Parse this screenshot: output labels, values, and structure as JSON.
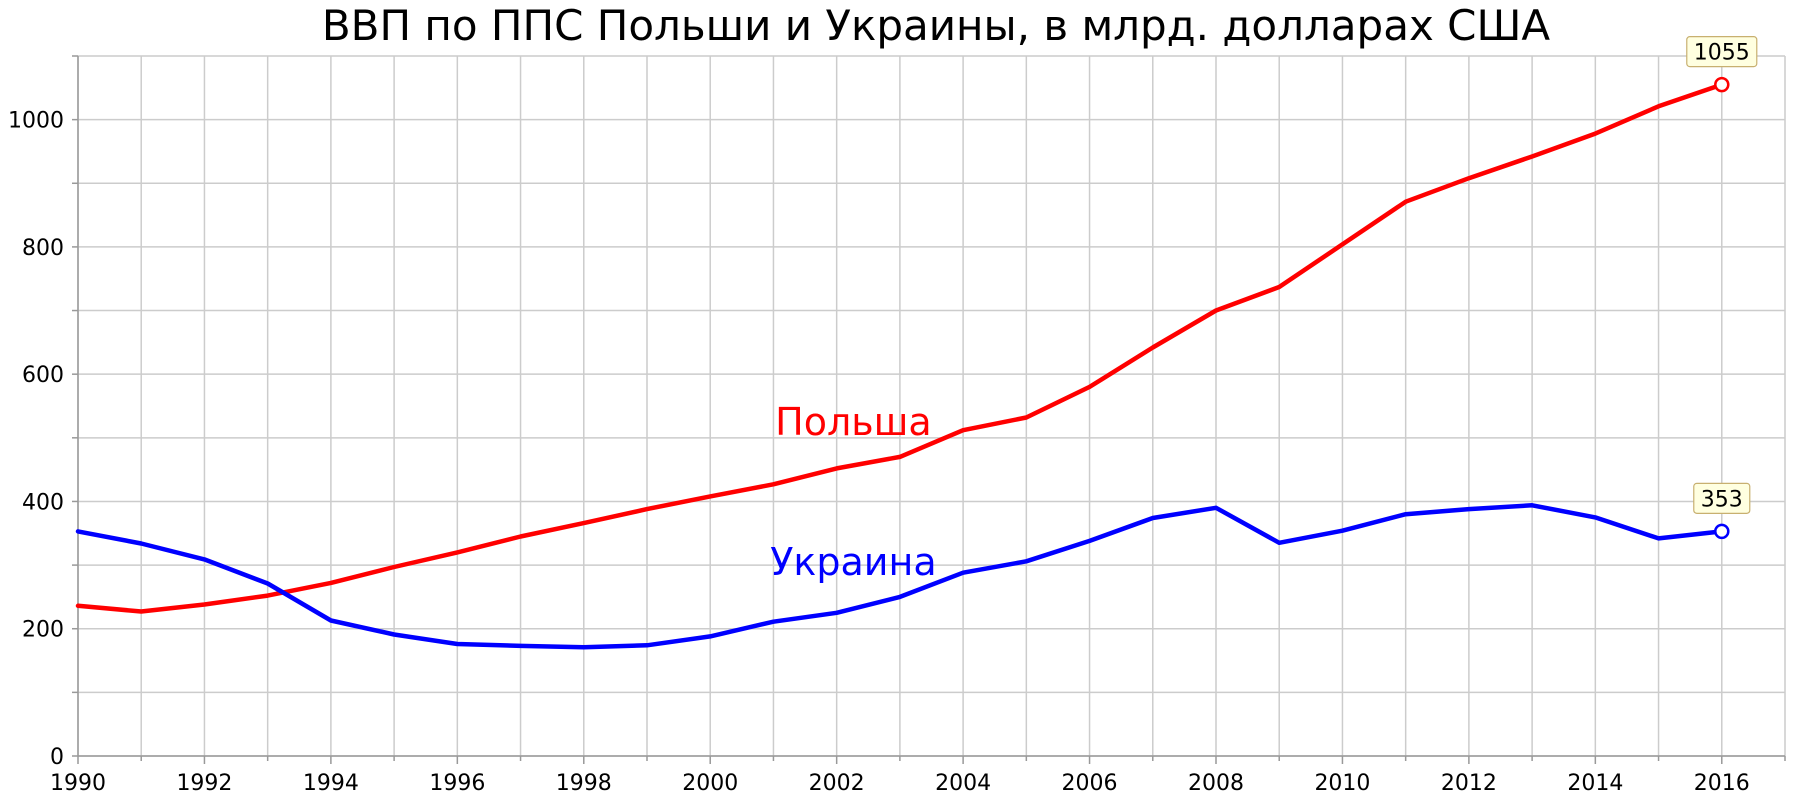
{
  "chart_data": {
    "type": "line",
    "title": "ВВП по ППС Польши и Украины, в млрд. долларах США",
    "xlabel": "",
    "ylabel": "",
    "xlim": [
      1990,
      2017
    ],
    "ylim": [
      0,
      1100
    ],
    "x_ticks": [
      1990,
      1992,
      1994,
      1996,
      1998,
      2000,
      2002,
      2004,
      2006,
      2008,
      2010,
      2012,
      2014,
      2016
    ],
    "y_ticks": [
      0,
      200,
      400,
      600,
      800,
      1000
    ],
    "grid": true,
    "legend": "inline labels",
    "x": [
      1990,
      1991,
      1992,
      1993,
      1994,
      1995,
      1996,
      1997,
      1998,
      1999,
      2000,
      2001,
      2002,
      2003,
      2004,
      2005,
      2006,
      2007,
      2008,
      2009,
      2010,
      2011,
      2012,
      2013,
      2014,
      2015,
      2016
    ],
    "series": [
      {
        "name": "Польша",
        "color": "#ff0000",
        "label_at": [
          2001,
          523
        ],
        "values": [
          236,
          227,
          238,
          252,
          272,
          297,
          320,
          345,
          366,
          388,
          408,
          427,
          452,
          470,
          512,
          532,
          580,
          642,
          700,
          737,
          804,
          871,
          908,
          942,
          978,
          1021,
          1055
        ],
        "end_label": "1055"
      },
      {
        "name": "Украина",
        "color": "#0000ff",
        "label_at": [
          2001,
          303
        ],
        "values": [
          353,
          334,
          309,
          271,
          213,
          191,
          176,
          173,
          171,
          174,
          188,
          211,
          225,
          250,
          288,
          306,
          338,
          374,
          390,
          335,
          354,
          380,
          388,
          394,
          375,
          342,
          353
        ],
        "end_label": "353"
      }
    ]
  }
}
